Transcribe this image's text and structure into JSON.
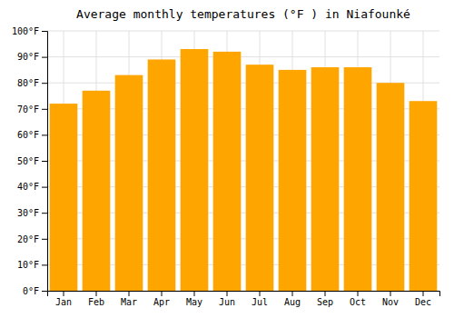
{
  "chart_data": {
    "type": "bar",
    "title": "Average monthly temperatures (°F ) in Niafounké",
    "categories": [
      "Jan",
      "Feb",
      "Mar",
      "Apr",
      "May",
      "Jun",
      "Jul",
      "Aug",
      "Sep",
      "Oct",
      "Nov",
      "Dec"
    ],
    "values": [
      72,
      77,
      83,
      89,
      93,
      92,
      87,
      85,
      86,
      86,
      80,
      73
    ],
    "color": "#FFA500",
    "ylim": [
      0,
      100
    ],
    "yticks": [
      {
        "value": 0,
        "label": "0°F"
      },
      {
        "value": 10,
        "label": "10°F"
      },
      {
        "value": 20,
        "label": "20°F"
      },
      {
        "value": 30,
        "label": "30°F"
      },
      {
        "value": 40,
        "label": "40°F"
      },
      {
        "value": 50,
        "label": "50°F"
      },
      {
        "value": 60,
        "label": "60°F"
      },
      {
        "value": 70,
        "label": "70°F"
      },
      {
        "value": 80,
        "label": "80°F"
      },
      {
        "value": 90,
        "label": "90°F"
      },
      {
        "value": 100,
        "label": "100°F"
      }
    ],
    "grid": true
  }
}
